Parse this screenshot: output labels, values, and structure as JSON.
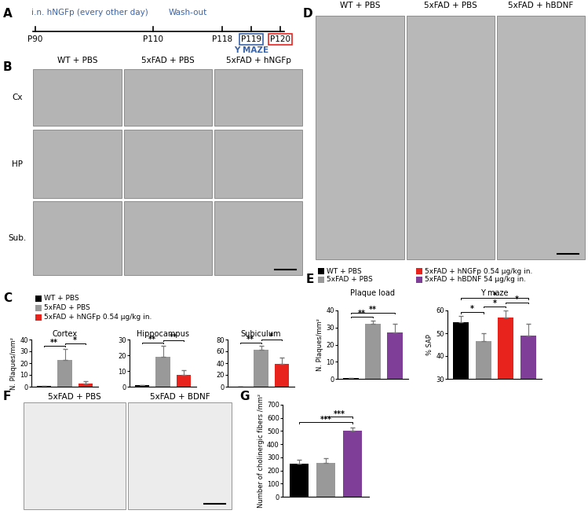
{
  "panels": [
    {
      "letter": "A",
      "kind": "timeline",
      "ticks": [
        {
          "label": "P90"
        },
        {
          "label": "P110"
        },
        {
          "label": "P118"
        },
        {
          "label": "P119",
          "box_color": "#3b64a8"
        },
        {
          "label": "P120",
          "box_color": "#e8231e"
        }
      ],
      "treatment": "i.n. hNGFp (every other day)",
      "washout": "Wash-out",
      "test": "Y MAZE",
      "text_color": "#3b64a8"
    },
    {
      "letter": "B",
      "kind": "images",
      "columns": [
        "WT + PBS",
        "5xFAD + PBS",
        "5xFAD + hNGFp"
      ],
      "rows": [
        "Cx",
        "HP",
        "Sub."
      ]
    },
    {
      "letter": "C",
      "kind": "legend",
      "legend": [
        {
          "name": "WT + PBS",
          "color": "#000000"
        },
        {
          "name": "5xFAD + PBS",
          "color": "#999999"
        },
        {
          "name": "5xFAD + hNGFp 0.54 µg/kg in.",
          "color": "#e8231e"
        }
      ]
    },
    {
      "letter": "D",
      "kind": "images",
      "columns": [
        "WT + PBS",
        "5xFAD + PBS",
        "5xFAD + hBDNF"
      ],
      "rows": []
    },
    {
      "letter": "E",
      "kind": "legend",
      "legend": [
        {
          "name": "WT + PBS",
          "color": "#000000"
        },
        {
          "name": "5xFAD + PBS",
          "color": "#999999"
        },
        {
          "name": "5xFAD + hNGFp 0.54 µg/kg in.",
          "color": "#e8231e"
        },
        {
          "name": "5xFAD + hBDNF 54 µg/kg in.",
          "color": "#7f3f98"
        }
      ]
    },
    {
      "letter": "F",
      "kind": "images",
      "columns": [
        "5xFAD + PBS",
        "5xFAD + BDNF"
      ],
      "rows": []
    },
    {
      "letter": "G",
      "kind": "legend",
      "legend": []
    }
  ],
  "chart_data": [
    {
      "type": "bar",
      "panel": "C",
      "title": "Cortex",
      "ylabel": "N. Plaques/mm²",
      "categories": [
        null,
        null,
        null
      ],
      "values": [
        0.5,
        23,
        3
      ],
      "errors": [
        0,
        9,
        2
      ],
      "colors": [
        "#000000",
        "#999999",
        "#e8231e"
      ],
      "ylim": [
        0,
        40
      ],
      "yticks": [
        0,
        10,
        20,
        30,
        40
      ],
      "tick_labels": "y",
      "significance": [
        {
          "from": 0,
          "to": 1,
          "label": "**"
        },
        {
          "from": 1,
          "to": 2,
          "label": "*"
        }
      ]
    },
    {
      "type": "bar",
      "panel": "C",
      "title": "Hippocampus",
      "categories": [
        null,
        null,
        null
      ],
      "values": [
        1,
        19,
        7.5
      ],
      "errors": [
        0,
        7,
        3
      ],
      "colors": [
        "#000000",
        "#999999",
        "#e8231e"
      ],
      "ylim": [
        0,
        30
      ],
      "yticks": [
        0,
        10,
        20,
        30
      ],
      "tick_labels": "y",
      "significance": [
        {
          "from": 0,
          "to": 1,
          "label": "**"
        },
        {
          "from": 1,
          "to": 2,
          "label": "**"
        }
      ]
    },
    {
      "type": "bar",
      "panel": "C",
      "title": "Subiculum",
      "categories": [
        null,
        null,
        null
      ],
      "values": [
        0.5,
        63,
        39
      ],
      "errors": [
        0,
        7,
        11
      ],
      "colors": [
        "#000000",
        "#999999",
        "#e8231e"
      ],
      "ylim": [
        0,
        80
      ],
      "yticks": [
        0,
        20,
        40,
        60,
        80
      ],
      "tick_labels": "y",
      "significance": [
        {
          "from": 0,
          "to": 1,
          "label": "**"
        },
        {
          "from": 1,
          "to": 2,
          "label": "*"
        }
      ]
    },
    {
      "type": "bar",
      "panel": "E",
      "title": "Plaque load",
      "ylabel": "N. Plaques/mm²",
      "categories": [
        null,
        null,
        null
      ],
      "values": [
        0.5,
        32,
        27
      ],
      "errors": [
        0,
        2,
        5
      ],
      "colors": [
        "#000000",
        "#999999",
        "#7f3f98"
      ],
      "ylim": [
        0,
        40
      ],
      "yticks": [
        0,
        10,
        20,
        30,
        40
      ],
      "tick_labels": "y",
      "significance": [
        {
          "from": 0,
          "to": 1,
          "label": "**"
        },
        {
          "from": 0,
          "to": 2,
          "label": "**"
        }
      ]
    },
    {
      "type": "bar",
      "panel": "E",
      "title": "Y maze",
      "ylabel": "% SAP",
      "categories": [
        null,
        null,
        null,
        null
      ],
      "values": [
        55,
        46.5,
        57,
        49
      ],
      "errors": [
        2.5,
        3.5,
        3,
        5
      ],
      "colors": [
        "#000000",
        "#999999",
        "#e8231e",
        "#7f3f98"
      ],
      "ylim": [
        30,
        60
      ],
      "yticks": [
        30,
        40,
        50,
        60
      ],
      "tick_labels": "y",
      "significance": [
        {
          "from": 0,
          "to": 1,
          "label": "*"
        },
        {
          "from": 1,
          "to": 2,
          "label": "*"
        },
        {
          "from": 2,
          "to": 3,
          "label": "*"
        },
        {
          "from": 0,
          "to": 3,
          "label": "*"
        }
      ]
    },
    {
      "type": "bar",
      "panel": "G",
      "ylabel": "Number of cholinergic fibers /mm²",
      "categories": [
        null,
        null,
        null
      ],
      "values": [
        250,
        260,
        500
      ],
      "errors": [
        30,
        35,
        25
      ],
      "colors": [
        "#000000",
        "#999999",
        "#7f3f98"
      ],
      "ylim": [
        0,
        700
      ],
      "yticks": [
        0,
        100,
        200,
        300,
        400,
        500,
        600,
        700
      ],
      "tick_labels": "y",
      "significance": [
        {
          "from": 0,
          "to": 2,
          "label": "***"
        },
        {
          "from": 1,
          "to": 2,
          "label": "***"
        }
      ]
    }
  ]
}
